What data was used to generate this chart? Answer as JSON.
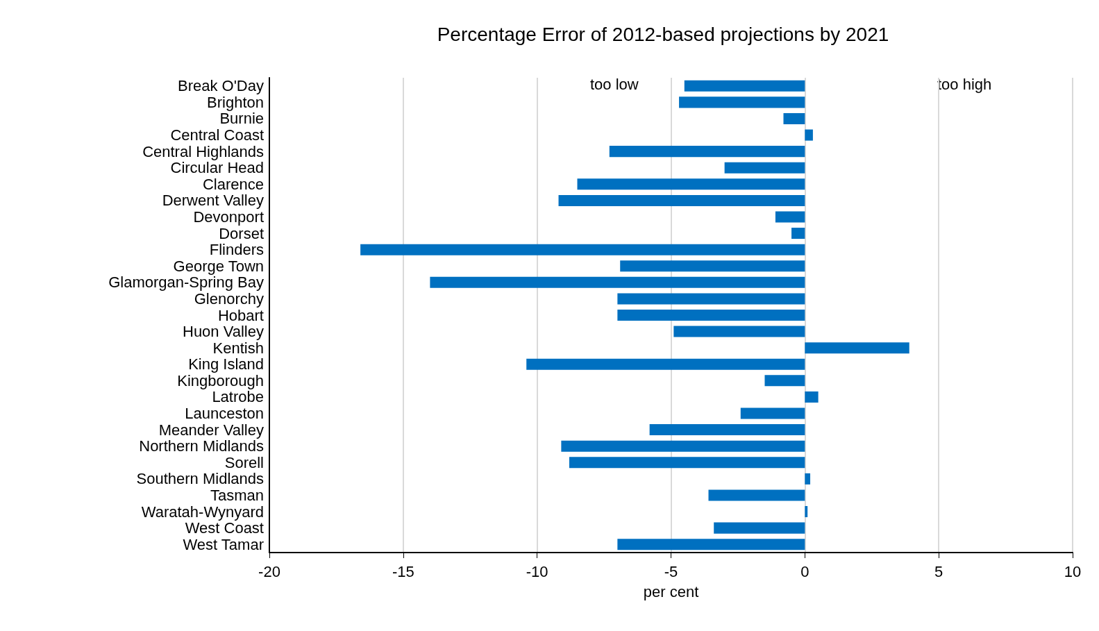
{
  "chart_data": {
    "type": "bar",
    "orientation": "horizontal",
    "title": "Percentage Error of 2012-based projections by 2021",
    "xlabel": "per cent",
    "categories": [
      "Break O'Day",
      "Brighton",
      "Burnie",
      "Central Coast",
      "Central Highlands",
      "Circular Head",
      "Clarence",
      "Derwent Valley",
      "Devonport",
      "Dorset",
      "Flinders",
      "George Town",
      "Glamorgan-Spring Bay",
      "Glenorchy",
      "Hobart",
      "Huon Valley",
      "Kentish",
      "King Island",
      "Kingborough",
      "Latrobe",
      "Launceston",
      "Meander Valley",
      "Northern Midlands",
      "Sorell",
      "Southern Midlands",
      "Tasman",
      "Waratah-Wynyard",
      "West Coast",
      "West Tamar"
    ],
    "values": [
      -4.5,
      -4.7,
      -0.8,
      0.3,
      -7.3,
      -3.0,
      -8.5,
      -9.2,
      -1.1,
      -0.5,
      -16.6,
      -6.9,
      -14.0,
      -7.0,
      -7.0,
      -4.9,
      3.9,
      -10.4,
      -1.5,
      0.5,
      -2.4,
      -5.8,
      -9.1,
      -8.8,
      0.2,
      -3.6,
      0.1,
      -3.4,
      -7.0
    ],
    "color": "#0070c0",
    "xlim": [
      -20,
      10
    ],
    "xticks": [
      -20,
      -15,
      -10,
      -5,
      0,
      5,
      10
    ],
    "grid": "x",
    "annotations": [
      "too low",
      "too high"
    ]
  }
}
